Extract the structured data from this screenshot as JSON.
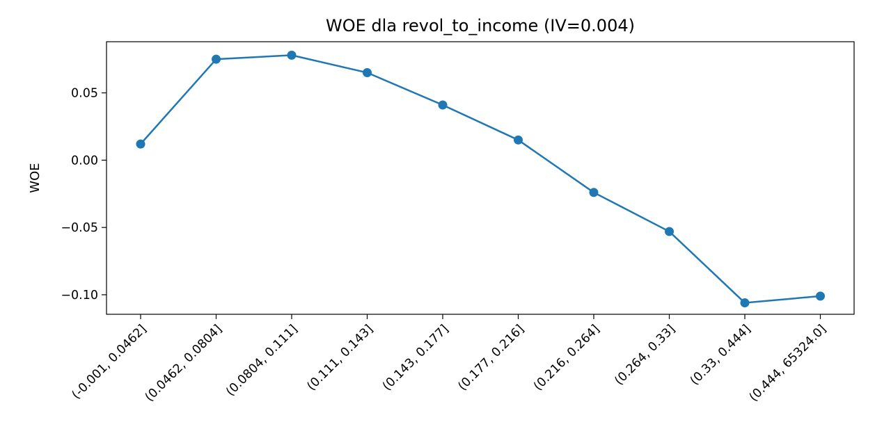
{
  "chart_data": {
    "type": "line",
    "title": "WOE dla revol_to_income (IV=0.004)",
    "xlabel": "",
    "ylabel": "WOE",
    "categories": [
      "(-0.001, 0.0462]",
      "(0.0462, 0.0804]",
      "(0.0804, 0.111]",
      "(0.111, 0.143]",
      "(0.143, 0.177]",
      "(0.177, 0.216]",
      "(0.216, 0.264]",
      "(0.264, 0.33]",
      "(0.33, 0.444]",
      "(0.444, 65324.0]"
    ],
    "series": [
      {
        "values": [
          0.012,
          0.075,
          0.078,
          0.065,
          0.041,
          0.015,
          -0.024,
          -0.053,
          -0.106,
          -0.101
        ],
        "color": "#1f77b4",
        "marker": "circle"
      }
    ],
    "ylim": [
      -0.1145,
      0.088
    ],
    "yticks": [
      0.05,
      0.0,
      -0.05,
      -0.1
    ],
    "ytick_labels": [
      "0.05",
      "0.00",
      "−0.05",
      "−0.10"
    ],
    "grid": false,
    "legend": "none"
  }
}
